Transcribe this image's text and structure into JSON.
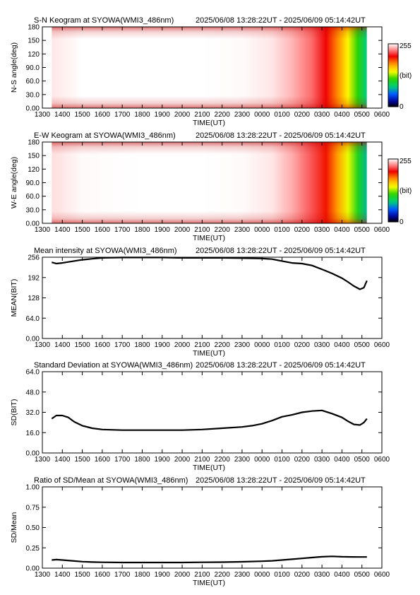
{
  "xaxis": {
    "ticks": [
      "1300",
      "1400",
      "1500",
      "1600",
      "1700",
      "1800",
      "1900",
      "2000",
      "2100",
      "2200",
      "2300",
      "0000",
      "0100",
      "0200",
      "0300",
      "0400",
      "0500",
      "0600"
    ],
    "label": "TIME(UT)",
    "range_hours": [
      13,
      30
    ],
    "data_start_hour": 13.473,
    "data_end_hour": 29.245
  },
  "colorbar": {
    "max_label": "255",
    "unit_label": "(bit)",
    "min_label": "0"
  },
  "chart_data": [
    {
      "type": "heatmap",
      "title": "S-N Keogram at SYOWA(WMI3_486nm)",
      "time_range": "2025/06/08 13:28:22UT - 2025/06/09 05:14:42UT",
      "xlabel": "TIME(UT)",
      "ylabel": "N-S angle(deg)",
      "yticks": [
        "0.00",
        "30.0",
        "60.0",
        "90.0",
        "120",
        "150",
        "180"
      ],
      "ylim": [
        0,
        180
      ],
      "colorscale": {
        "min": 0,
        "max": 255,
        "unit": "bit"
      },
      "time_hours": [
        13.47,
        15,
        18,
        21,
        23,
        24.5,
        25.5,
        26.5,
        27.2,
        27.8,
        28.3,
        28.8,
        29.25
      ],
      "intensity_profile": [
        250,
        255,
        255,
        255,
        254,
        250,
        240,
        225,
        205,
        175,
        145,
        110,
        80
      ]
    },
    {
      "type": "heatmap",
      "title": "E-W Keogram at SYOWA(WMI3_486nm)",
      "time_range": "2025/06/08 13:28:22UT - 2025/06/09 05:14:42UT",
      "xlabel": "TIME(UT)",
      "ylabel": "W-E angle(deg)",
      "yticks": [
        "0.00",
        "30.0",
        "60.0",
        "90.0",
        "120",
        "150",
        "180"
      ],
      "ylim": [
        0,
        180
      ],
      "colorscale": {
        "min": 0,
        "max": 255,
        "unit": "bit"
      },
      "time_hours": [
        13.47,
        15,
        18,
        21,
        23,
        24.5,
        25.5,
        26.5,
        27.2,
        27.8,
        28.3,
        28.8,
        29.25
      ],
      "intensity_profile": [
        248,
        254,
        255,
        255,
        254,
        250,
        238,
        220,
        200,
        170,
        140,
        105,
        75
      ]
    },
    {
      "type": "line",
      "title": "Mean intensity at SYOWA(WMI3_486nm)",
      "time_range": "2025/06/08 13:28:22UT - 2025/06/09 05:14:42UT",
      "xlabel": "TIME(UT)",
      "ylabel": "MEAN(BIT)",
      "yticks": [
        "0.00",
        "64.0",
        "128",
        "192",
        "256"
      ],
      "ylim": [
        0,
        256
      ],
      "x": [
        13.47,
        13.7,
        14.0,
        14.5,
        15.0,
        15.5,
        16,
        17,
        18,
        19,
        20,
        21,
        22,
        23,
        24,
        24.5,
        25,
        25.5,
        26,
        26.5,
        27,
        27.5,
        28,
        28.3,
        28.6,
        28.9,
        29.1,
        29.25
      ],
      "y": [
        240,
        236,
        238,
        243,
        248,
        251,
        254,
        255,
        255,
        255,
        254,
        254,
        254,
        253,
        252,
        250,
        244,
        238,
        236,
        230,
        218,
        205,
        190,
        178,
        165,
        155,
        160,
        182
      ]
    },
    {
      "type": "line",
      "title": "Standard Deviation at SYOWA(WMI3_486nm)",
      "time_range": "2025/06/08 13:28:22UT - 2025/06/09 05:14:42UT",
      "xlabel": "TIME(UT)",
      "ylabel": "SD(BIT)",
      "yticks": [
        "0.00",
        "16.0",
        "32.0",
        "48.0",
        "64.0"
      ],
      "ylim": [
        0,
        64
      ],
      "x": [
        13.47,
        13.7,
        14.0,
        14.3,
        14.6,
        15.0,
        15.5,
        16,
        17,
        18,
        19,
        20,
        21,
        22,
        23,
        23.5,
        24,
        24.5,
        25,
        25.5,
        26,
        26.5,
        27,
        27.5,
        28,
        28.3,
        28.6,
        28.9,
        29.1,
        29.25
      ],
      "y": [
        27,
        29.5,
        29.5,
        28,
        24.5,
        21.5,
        19.5,
        18.5,
        18,
        18,
        18,
        18,
        18.5,
        19.5,
        20.5,
        21.5,
        23,
        25.5,
        28.5,
        30,
        32,
        33,
        33.5,
        31,
        28,
        25,
        22.5,
        22,
        24,
        27
      ]
    },
    {
      "type": "line",
      "title": "Ratio of SD/Mean at SYOWA(WMI3_486nm)",
      "time_range": "2025/06/08 13:28:22UT - 2025/06/09 05:14:42UT",
      "xlabel": "TIME(UT)",
      "ylabel": "SD/Mean",
      "yticks": [
        "0.00",
        "0.25",
        "0.50",
        "0.75",
        "1.00"
      ],
      "ylim": [
        0,
        1.0
      ],
      "x": [
        13.47,
        13.7,
        14.0,
        14.5,
        15.0,
        15.5,
        16,
        17,
        18,
        19,
        20,
        21,
        22,
        23,
        24,
        24.5,
        25,
        25.5,
        26,
        26.5,
        27,
        27.5,
        28,
        28.5,
        29,
        29.25
      ],
      "y": [
        0.1,
        0.105,
        0.1,
        0.09,
        0.08,
        0.075,
        0.072,
        0.07,
        0.07,
        0.07,
        0.07,
        0.072,
        0.074,
        0.078,
        0.085,
        0.09,
        0.1,
        0.11,
        0.12,
        0.13,
        0.14,
        0.145,
        0.14,
        0.138,
        0.137,
        0.137
      ]
    }
  ]
}
